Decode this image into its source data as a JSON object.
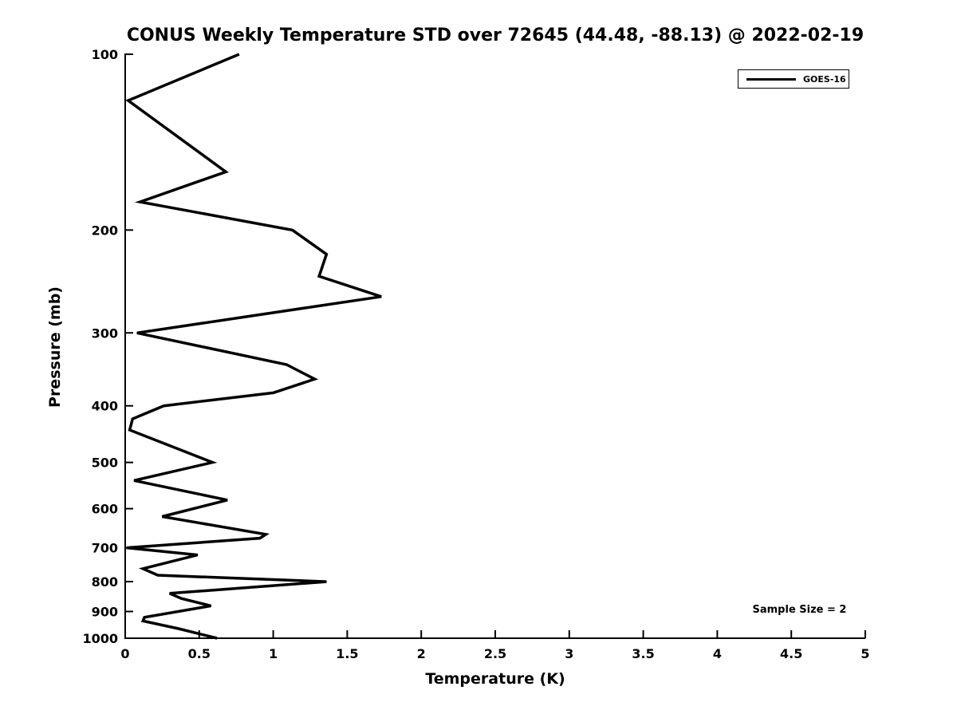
{
  "page": {
    "background_color": "#ffffff",
    "foreground_color": "#000000"
  },
  "header": {
    "title": "CONUS Weekly Temperature STD over 72645 (44.48, -88.13) @ 2022-02-19"
  },
  "chart_data": {
    "type": "line",
    "title": "CONUS Weekly Temperature STD over 72645 (44.48, -88.13) @ 2022-02-19",
    "xlabel": "Temperature (K)",
    "ylabel": "Pressure (mb)",
    "xlim": [
      0,
      5
    ],
    "ylim": [
      100,
      1000
    ],
    "y_scale": "log",
    "y_direction": "increasing-downward",
    "grid": false,
    "x_tick_labels": [
      "0",
      "0.5",
      "1",
      "1.5",
      "2",
      "2.5",
      "3",
      "3.5",
      "4",
      "4.5",
      "5"
    ],
    "x_tick_values": [
      0,
      0.5,
      1,
      1.5,
      2,
      2.5,
      3,
      3.5,
      4,
      4.5,
      5
    ],
    "y_tick_labels": [
      "100",
      "200",
      "300",
      "400",
      "500",
      "600",
      "700",
      "800",
      "900",
      "1000"
    ],
    "y_tick_values": [
      100,
      200,
      300,
      400,
      500,
      600,
      700,
      800,
      900,
      1000
    ],
    "legend": {
      "position": "top-right",
      "entries": [
        {
          "label": "GOES-16",
          "color": "#000000",
          "line_width": 3
        }
      ]
    },
    "annotation": {
      "text": "Sample Size = 2",
      "position": "bottom-right"
    },
    "series": [
      {
        "name": "GOES-16",
        "color": "#000000",
        "line_width": 3.5,
        "points_temp_pressure": [
          [
            0.77,
            100
          ],
          [
            0.02,
            120
          ],
          [
            0.68,
            159
          ],
          [
            0.1,
            179
          ],
          [
            1.13,
            200
          ],
          [
            1.36,
            220
          ],
          [
            1.31,
            240
          ],
          [
            1.73,
            260
          ],
          [
            0.08,
            300
          ],
          [
            1.09,
            340
          ],
          [
            1.28,
            360
          ],
          [
            1.0,
            380
          ],
          [
            0.26,
            400
          ],
          [
            0.05,
            421
          ],
          [
            0.03,
            440
          ],
          [
            0.59,
            500
          ],
          [
            0.06,
            537
          ],
          [
            0.69,
            580
          ],
          [
            0.25,
            619
          ],
          [
            0.95,
            664
          ],
          [
            0.91,
            674
          ],
          [
            0.01,
            700
          ],
          [
            0.49,
            720
          ],
          [
            0.12,
            760
          ],
          [
            0.22,
            780
          ],
          [
            1.36,
            800
          ],
          [
            0.3,
            838
          ],
          [
            0.38,
            855
          ],
          [
            0.58,
            880
          ],
          [
            0.13,
            921
          ],
          [
            0.12,
            934
          ],
          [
            0.36,
            963
          ],
          [
            0.62,
            1000
          ]
        ]
      }
    ]
  }
}
